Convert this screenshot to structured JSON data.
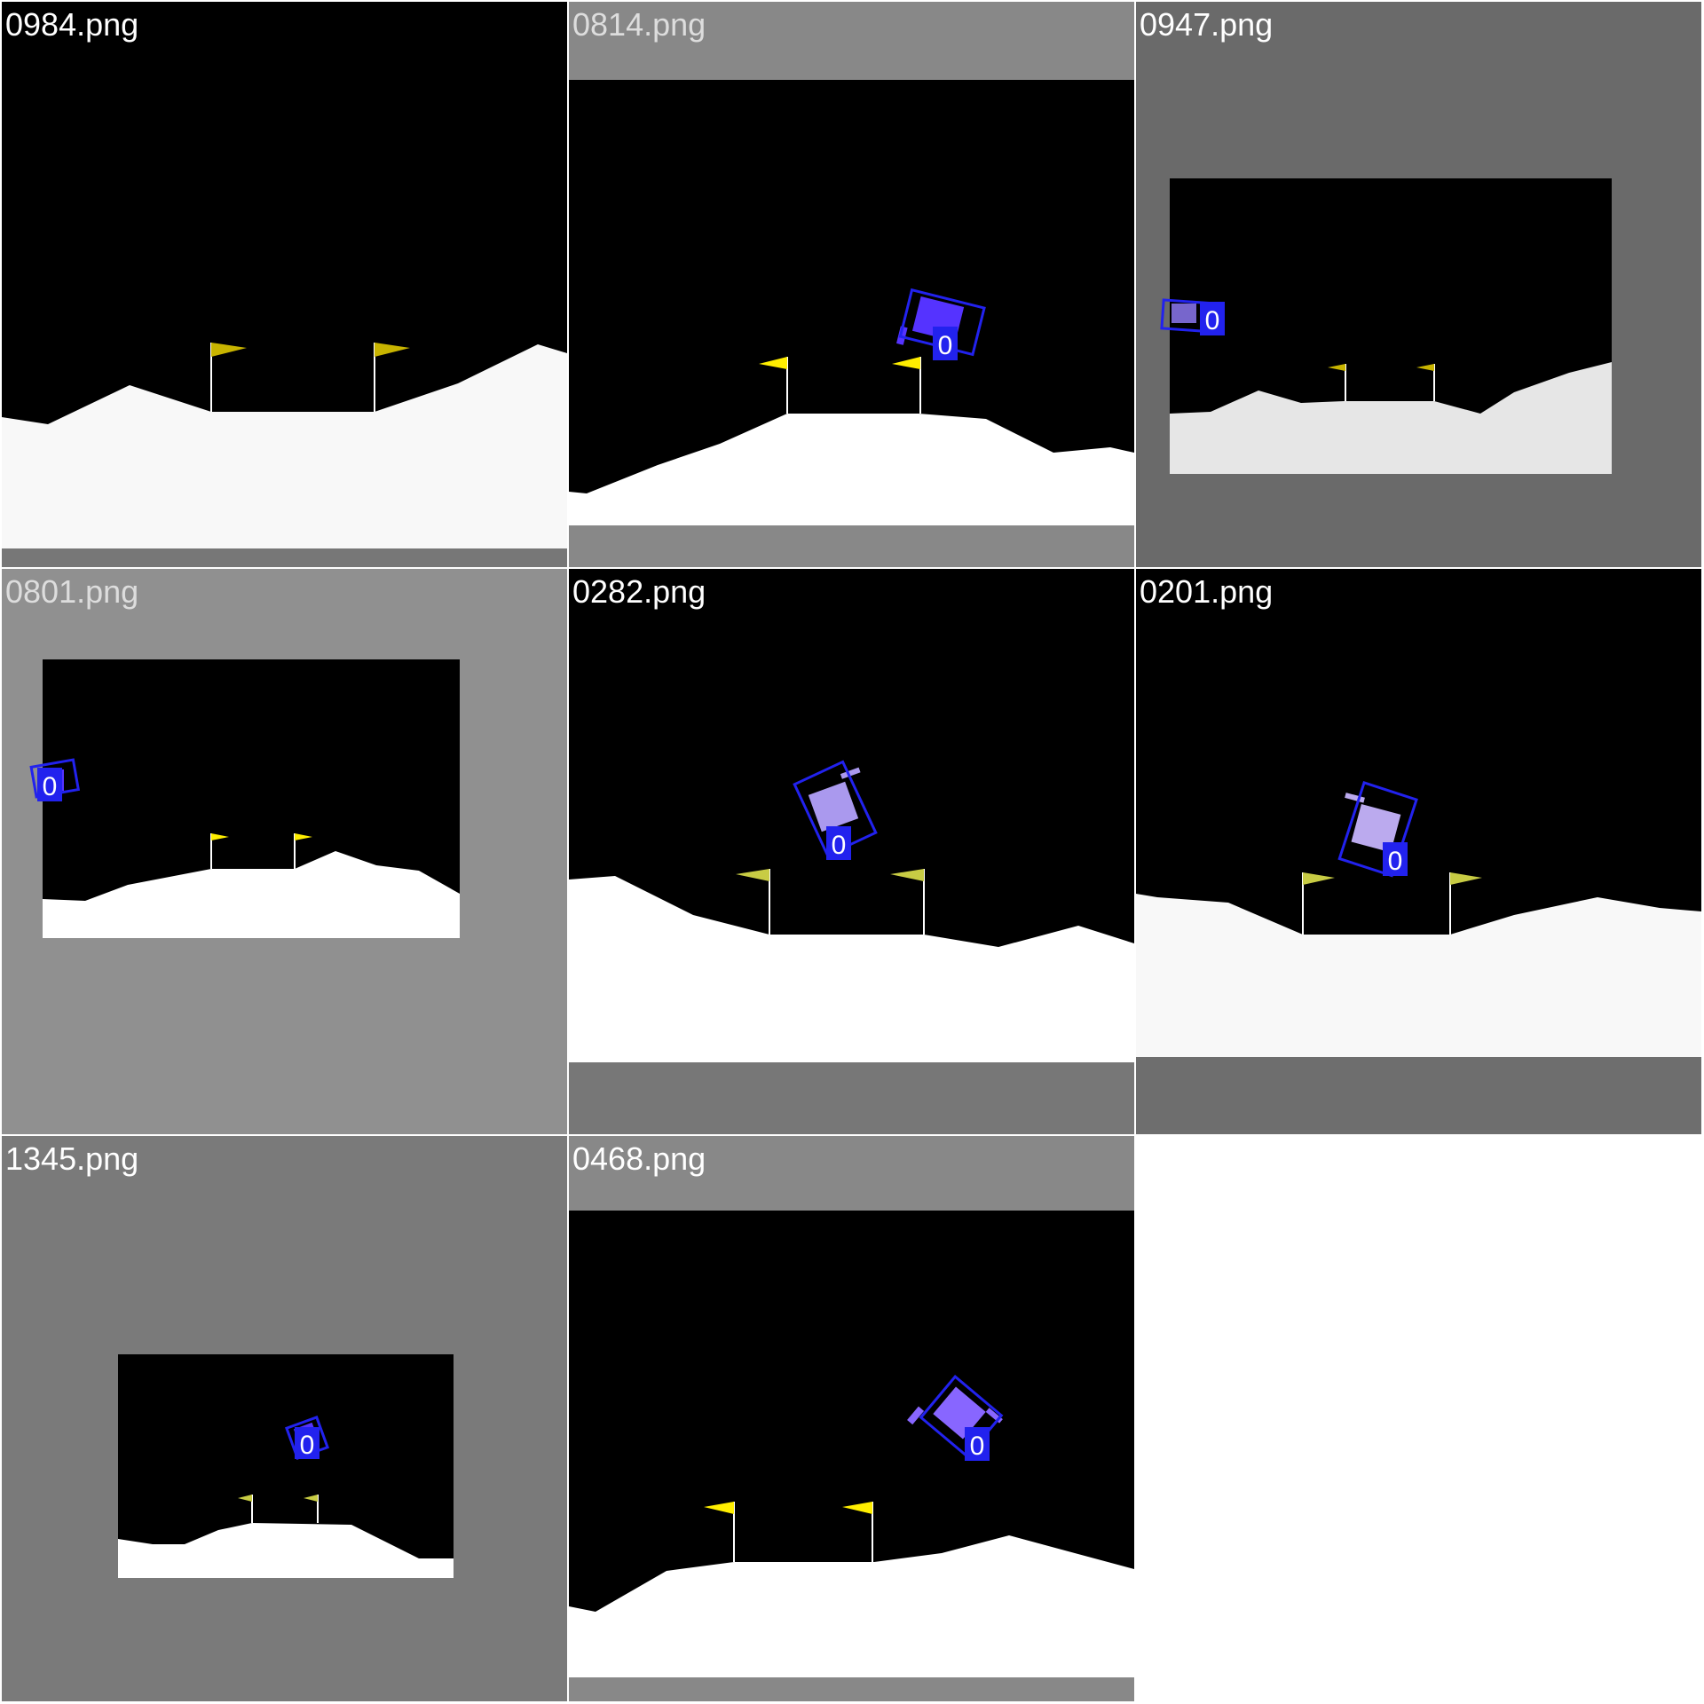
{
  "tiles": [
    {
      "filename": "0984.png",
      "label_color": "#ffffff",
      "detection_label": null
    },
    {
      "filename": "0814.png",
      "label_color": "#dddddd",
      "detection_label": "0"
    },
    {
      "filename": "0947.png",
      "label_color": "#ffffff",
      "detection_label": "0"
    },
    {
      "filename": "0801.png",
      "label_color": "#dddddd",
      "detection_label": "0"
    },
    {
      "filename": "0282.png",
      "label_color": "#ffffff",
      "detection_label": "0"
    },
    {
      "filename": "0201.png",
      "label_color": "#ffffff",
      "detection_label": "0"
    },
    {
      "filename": "1345.png",
      "label_color": "#ffffff",
      "detection_label": "0"
    },
    {
      "filename": "0468.png",
      "label_color": "#ffffff",
      "detection_label": "0"
    }
  ],
  "colors": {
    "sky": "#000000",
    "moon_surface": "#ffffff",
    "flag": "#c8b400",
    "lander": "#8866ff",
    "detection_box": "#2222ee"
  }
}
